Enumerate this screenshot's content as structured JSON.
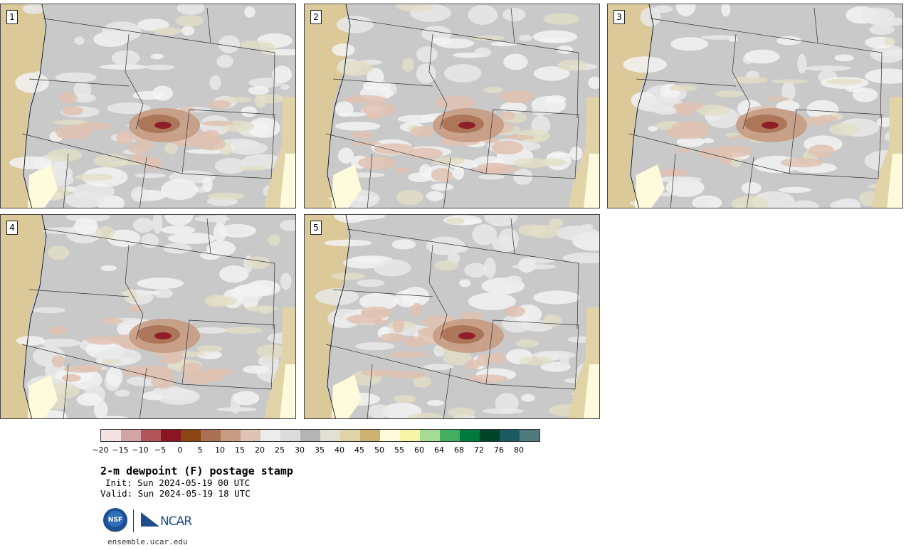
{
  "panels": [
    {
      "label": "1"
    },
    {
      "label": "2"
    },
    {
      "label": "3"
    },
    {
      "label": "4"
    },
    {
      "label": "5"
    }
  ],
  "colorbar": {
    "colors": [
      "#f4e3e3",
      "#d3a3a5",
      "#b0565a",
      "#8b1522",
      "#8a4513",
      "#aa7154",
      "#c69b82",
      "#dfc3b4",
      "#ececec",
      "#dcdcdc",
      "#b4b4b4",
      "#e1e0d4",
      "#e0d3a8",
      "#cdb274",
      "#fdfbdb",
      "#f5f5a5",
      "#a4dc94",
      "#43ad61",
      "#007a3e",
      "#00432a",
      "#1b5a5e",
      "#4f7b7f"
    ],
    "tick_labels": [
      "−20",
      "−15",
      "−10",
      "−5",
      "0",
      "5",
      "10",
      "15",
      "20",
      "25",
      "30",
      "35",
      "40",
      "45",
      "50",
      "55",
      "60",
      "64",
      "68",
      "72",
      "76",
      "80"
    ]
  },
  "title": "2-m dewpoint (F) postage stamp",
  "init": "Init: Sun 2024-05-19 00 UTC",
  "valid": "Valid: Sun 2024-05-19 18 UTC",
  "logos": {
    "nsf": "NSF",
    "ncar": "NCAR"
  },
  "site": "ensemble.ucar.edu"
}
